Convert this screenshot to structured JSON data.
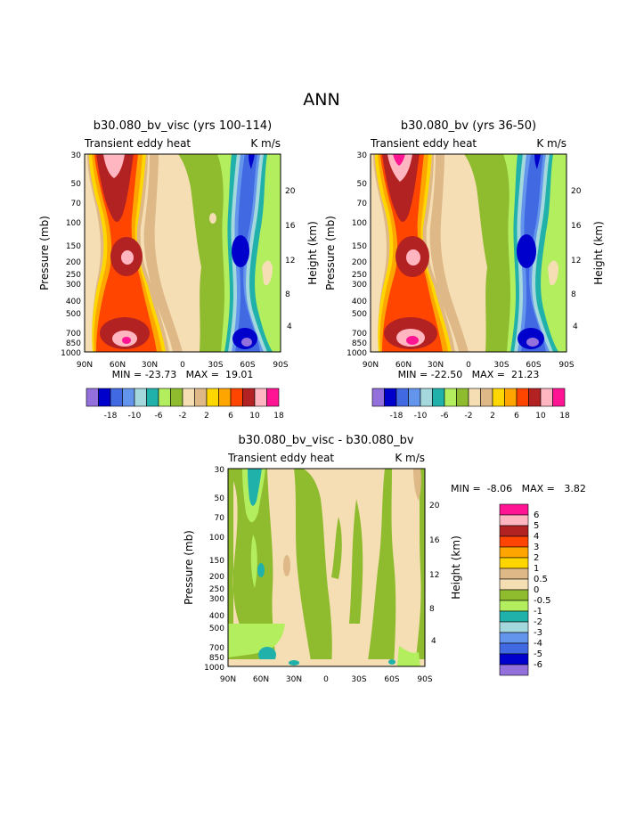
{
  "page_title": "ANN",
  "chart_data": [
    {
      "type": "heatmap",
      "title": "b30.080_bv_visc (yrs 100-114)",
      "subtitle_left": "Transient eddy heat",
      "subtitle_right": "K m/s",
      "ylabel": "Pressure (mb)",
      "ylabel_right": "Height (km)",
      "x_ticks": [
        "90N",
        "60N",
        "30N",
        "0",
        "30S",
        "60S",
        "90S"
      ],
      "y_ticks": [
        "30",
        "50",
        "70",
        "100",
        "150",
        "200",
        "250",
        "300",
        "400",
        "500",
        "700",
        "850",
        "1000"
      ],
      "y_right_ticks": [
        "20",
        "16",
        "12",
        "8",
        "4"
      ],
      "stats": "MIN = -23.73   MAX =  19.01",
      "colorbar_labels": [
        "-18",
        "-10",
        "-6",
        "-2",
        "2",
        "6",
        "10",
        "18"
      ]
    },
    {
      "type": "heatmap",
      "title": "b30.080_bv (yrs 36-50)",
      "subtitle_left": "Transient eddy heat",
      "subtitle_right": "K m/s",
      "ylabel": "Pressure (mb)",
      "ylabel_right": "Height (km)",
      "x_ticks": [
        "90N",
        "60N",
        "30N",
        "0",
        "30S",
        "60S",
        "90S"
      ],
      "y_ticks": [
        "30",
        "50",
        "70",
        "100",
        "150",
        "200",
        "250",
        "300",
        "400",
        "500",
        "700",
        "850",
        "1000"
      ],
      "y_right_ticks": [
        "20",
        "16",
        "12",
        "8",
        "4"
      ],
      "stats": "MIN = -22.50   MAX =  21.23",
      "colorbar_labels": [
        "-18",
        "-10",
        "-6",
        "-2",
        "2",
        "6",
        "10",
        "18"
      ]
    },
    {
      "type": "heatmap",
      "title": "b30.080_bv_visc - b30.080_bv",
      "subtitle_left": "Transient eddy heat",
      "subtitle_right": "K m/s",
      "ylabel": "Pressure (mb)",
      "ylabel_right": "Height (km)",
      "x_ticks": [
        "90N",
        "60N",
        "30N",
        "0",
        "30S",
        "60S",
        "90S"
      ],
      "y_ticks": [
        "30",
        "50",
        "70",
        "100",
        "150",
        "200",
        "250",
        "300",
        "400",
        "500",
        "700",
        "850",
        "1000"
      ],
      "y_right_ticks": [
        "20",
        "16",
        "12",
        "8",
        "4"
      ],
      "stats": "MIN =  -8.06   MAX =   3.82",
      "colorbar_labels": [
        "6",
        "5",
        "4",
        "3",
        "2",
        "1",
        "0.5",
        "0",
        "-0.5",
        "-1",
        "-2",
        "-3",
        "-4",
        "-5",
        "-6"
      ]
    }
  ],
  "palette": {
    "colors": [
      "#9370db",
      "#0000cd",
      "#4169e1",
      "#6495ed",
      "#a5d8dd",
      "#20b2aa",
      "#b2ee5e",
      "#8fbc2e",
      "#f5deb3",
      "#deb887",
      "#ffd700",
      "#ffa500",
      "#ff4500",
      "#b22222",
      "#ffb6c1",
      "#ff1493"
    ]
  }
}
